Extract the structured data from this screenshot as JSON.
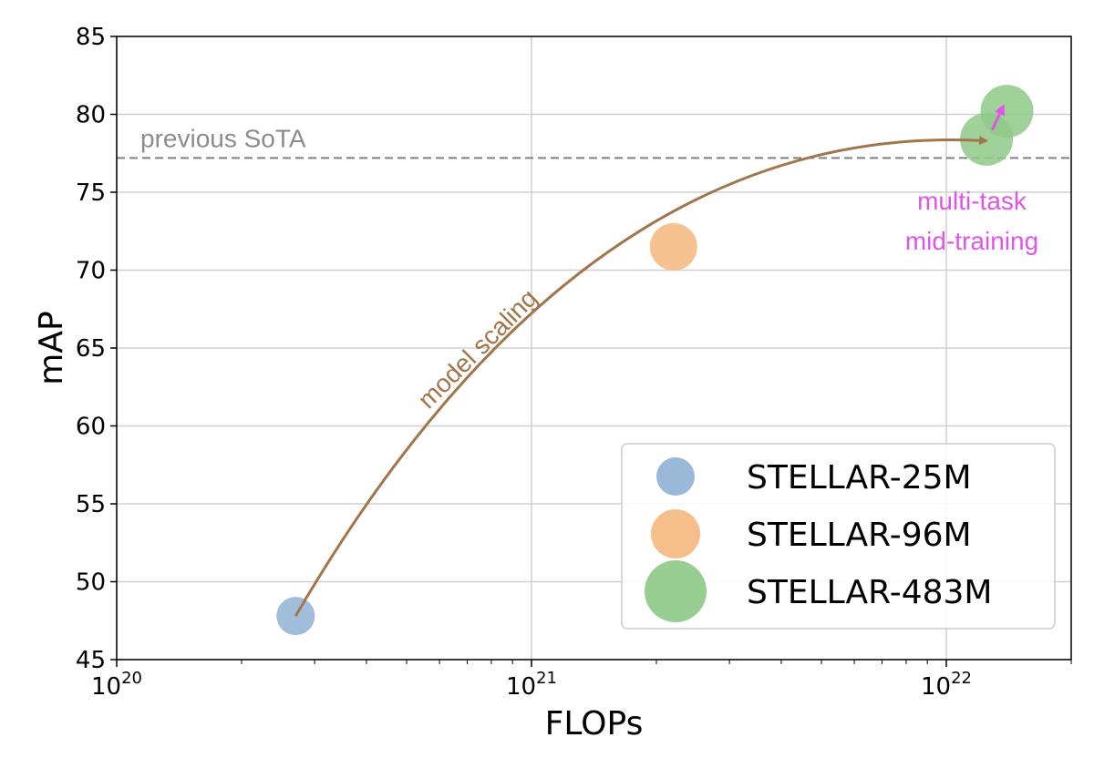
{
  "chart_data": {
    "type": "scatter",
    "title": "",
    "xlabel": "FLOPs",
    "ylabel": "mAP",
    "xscale": "log",
    "xlim": [
      1e+20,
      2e+22
    ],
    "ylim": [
      45,
      85
    ],
    "x_ticks": [
      {
        "value": 1e+20,
        "base": "10",
        "exp": "20"
      },
      {
        "value": 1e+21,
        "base": "10",
        "exp": "21"
      },
      {
        "value": 1e+22,
        "base": "10",
        "exp": "22"
      }
    ],
    "y_ticks": [
      "45",
      "50",
      "55",
      "60",
      "65",
      "70",
      "75",
      "80",
      "85"
    ],
    "grid": true,
    "legend": {
      "placement": "lower-right",
      "entries": [
        {
          "label": "STELLAR-25M",
          "color": "#8fb1d4"
        },
        {
          "label": "STELLAR-96M",
          "color": "#f4b77e"
        },
        {
          "label": "STELLAR-483M",
          "color": "#8ec987"
        }
      ]
    },
    "series": [
      {
        "name": "STELLAR-25M",
        "color": "#8fb1d4",
        "points": [
          {
            "x": 2.7e+20,
            "y": 47.8
          }
        ]
      },
      {
        "name": "STELLAR-96M",
        "color": "#f4b77e",
        "points": [
          {
            "x": 2.2e+21,
            "y": 71.5
          }
        ]
      },
      {
        "name": "STELLAR-483M",
        "color": "#8ec987",
        "points": [
          {
            "x": 1.25e+22,
            "y": 78.4
          },
          {
            "x": 1.4e+22,
            "y": 80.2
          }
        ]
      }
    ],
    "reference_line": {
      "label": "previous SoTA",
      "y": 77.2,
      "color": "#808080"
    },
    "annotations": [
      {
        "text": "model scaling",
        "color": "#a0764a",
        "from": {
          "x": 2.7e+20,
          "y": 47.8
        },
        "to": {
          "x": 1.25e+22,
          "y": 78.3
        }
      },
      {
        "text_lines": [
          "multi-task",
          "mid-training"
        ],
        "color": "#e055e8",
        "from": {
          "x": 1.29e+22,
          "y": 79.0
        },
        "to": {
          "x": 1.37e+22,
          "y": 80.5
        }
      }
    ]
  }
}
